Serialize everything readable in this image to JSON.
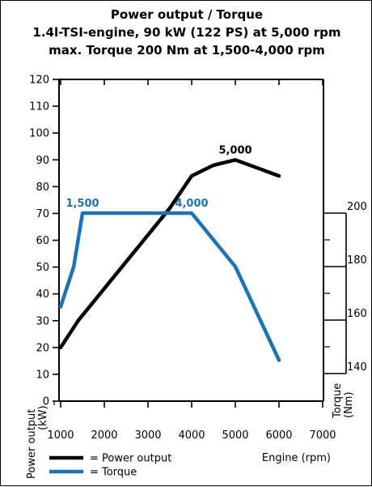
{
  "chart_data": {
    "type": "line",
    "title": "Power output / Torque",
    "subtitle_lines": [
      "1.4l-TSI-engine, 90 kW (122 PS) at 5,000 rpm",
      "max. Torque 200 Nm at 1,500-4,000 rpm"
    ],
    "xlabel": "Engine (rpm)",
    "ylabel_left": [
      "Power output",
      "(kW)"
    ],
    "ylabel_right": [
      "Torque",
      "(Nm)"
    ],
    "x_ticks": [
      1000,
      2000,
      3000,
      4000,
      5000,
      6000,
      7000
    ],
    "x_tick_labels": [
      "1000",
      "2000",
      "3000",
      "4000",
      "5000",
      "6000",
      "7000"
    ],
    "y_left_ticks": [
      0,
      10,
      20,
      30,
      40,
      50,
      60,
      70,
      80,
      90,
      100,
      110,
      120
    ],
    "y_left_tick_labels": [
      "0",
      "10",
      "20",
      "30",
      "40",
      "50",
      "60",
      "70",
      "80",
      "90",
      "100",
      "110",
      "120"
    ],
    "y_right_ticks": [
      140,
      160,
      180,
      200
    ],
    "y_right_tick_labels": [
      "140",
      "160",
      "180",
      "200"
    ],
    "xlim": [
      1000,
      7000
    ],
    "ylim_left": [
      0,
      120
    ],
    "ylim_right": [
      140,
      200
    ],
    "grid": false,
    "legend_position": "bottom-left",
    "series": [
      {
        "name": "Power output",
        "axis": "left",
        "color": "#000000",
        "x": [
          1000,
          1400,
          2000,
          3000,
          3500,
          4000,
          4500,
          5000,
          5500,
          6000
        ],
        "y": [
          20,
          30,
          42,
          62,
          72,
          84,
          88,
          90,
          87,
          84
        ]
      },
      {
        "name": "Torque",
        "axis": "right",
        "color": "#1a74b5",
        "x": [
          1000,
          1300,
          1500,
          4000,
          5000,
          6000
        ],
        "y": [
          165,
          180,
          200,
          200,
          180,
          145
        ]
      }
    ],
    "annotations": [
      {
        "text": "5,000",
        "x": 5000,
        "y": 90,
        "axis": "left",
        "color": "#000000"
      },
      {
        "text": "1,500",
        "x": 1500,
        "y": 200,
        "axis": "right",
        "color": "#1a74b5"
      },
      {
        "text": "4,000",
        "x": 4000,
        "y": 200,
        "axis": "right",
        "color": "#1a74b5"
      }
    ],
    "legend": [
      {
        "marker": "=",
        "label": "Power output",
        "color": "#000000"
      },
      {
        "marker": "=",
        "label": "Torque",
        "color": "#1a74b5"
      }
    ]
  }
}
